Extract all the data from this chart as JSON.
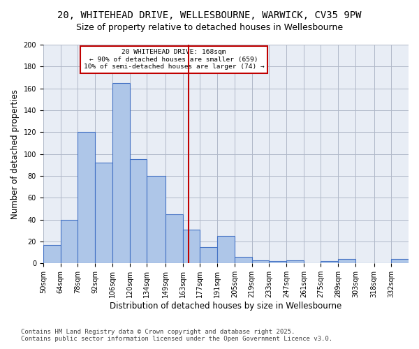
{
  "title_line1": "20, WHITEHEAD DRIVE, WELLESBOURNE, WARWICK, CV35 9PW",
  "title_line2": "Size of property relative to detached houses in Wellesbourne",
  "xlabel": "Distribution of detached houses by size in Wellesbourne",
  "ylabel": "Number of detached properties",
  "bar_values": [
    17,
    40,
    120,
    92,
    165,
    95,
    80,
    45,
    31,
    15,
    25,
    6,
    3,
    2,
    3,
    0,
    2,
    4,
    0,
    0,
    4
  ],
  "categories": [
    "50sqm",
    "64sqm",
    "78sqm",
    "92sqm",
    "106sqm",
    "120sqm",
    "134sqm",
    "149sqm",
    "163sqm",
    "177sqm",
    "191sqm",
    "205sqm",
    "219sqm",
    "233sqm",
    "247sqm",
    "261sqm",
    "275sqm",
    "289sqm",
    "303sqm",
    "318sqm",
    "332sqm"
  ],
  "bar_edges": [
    50,
    64,
    78,
    92,
    106,
    120,
    134,
    149,
    163,
    177,
    191,
    205,
    219,
    233,
    247,
    261,
    275,
    289,
    303,
    318,
    332,
    346
  ],
  "bar_color": "#aec6e8",
  "bar_edgecolor": "#4472c4",
  "property_size": 168,
  "vline_color": "#c00000",
  "annotation_text": "20 WHITEHEAD DRIVE: 168sqm\n← 90% of detached houses are smaller (659)\n10% of semi-detached houses are larger (74) →",
  "annotation_box_color": "#c00000",
  "ylim": [
    0,
    200
  ],
  "yticks": [
    0,
    20,
    40,
    60,
    80,
    100,
    120,
    140,
    160,
    180,
    200
  ],
  "grid_color": "#b0b8c8",
  "background_color": "#e8edf5",
  "footer_line1": "Contains HM Land Registry data © Crown copyright and database right 2025.",
  "footer_line2": "Contains public sector information licensed under the Open Government Licence v3.0.",
  "title_fontsize": 10,
  "subtitle_fontsize": 9,
  "axis_label_fontsize": 8.5,
  "tick_fontsize": 7,
  "footer_fontsize": 6.5
}
